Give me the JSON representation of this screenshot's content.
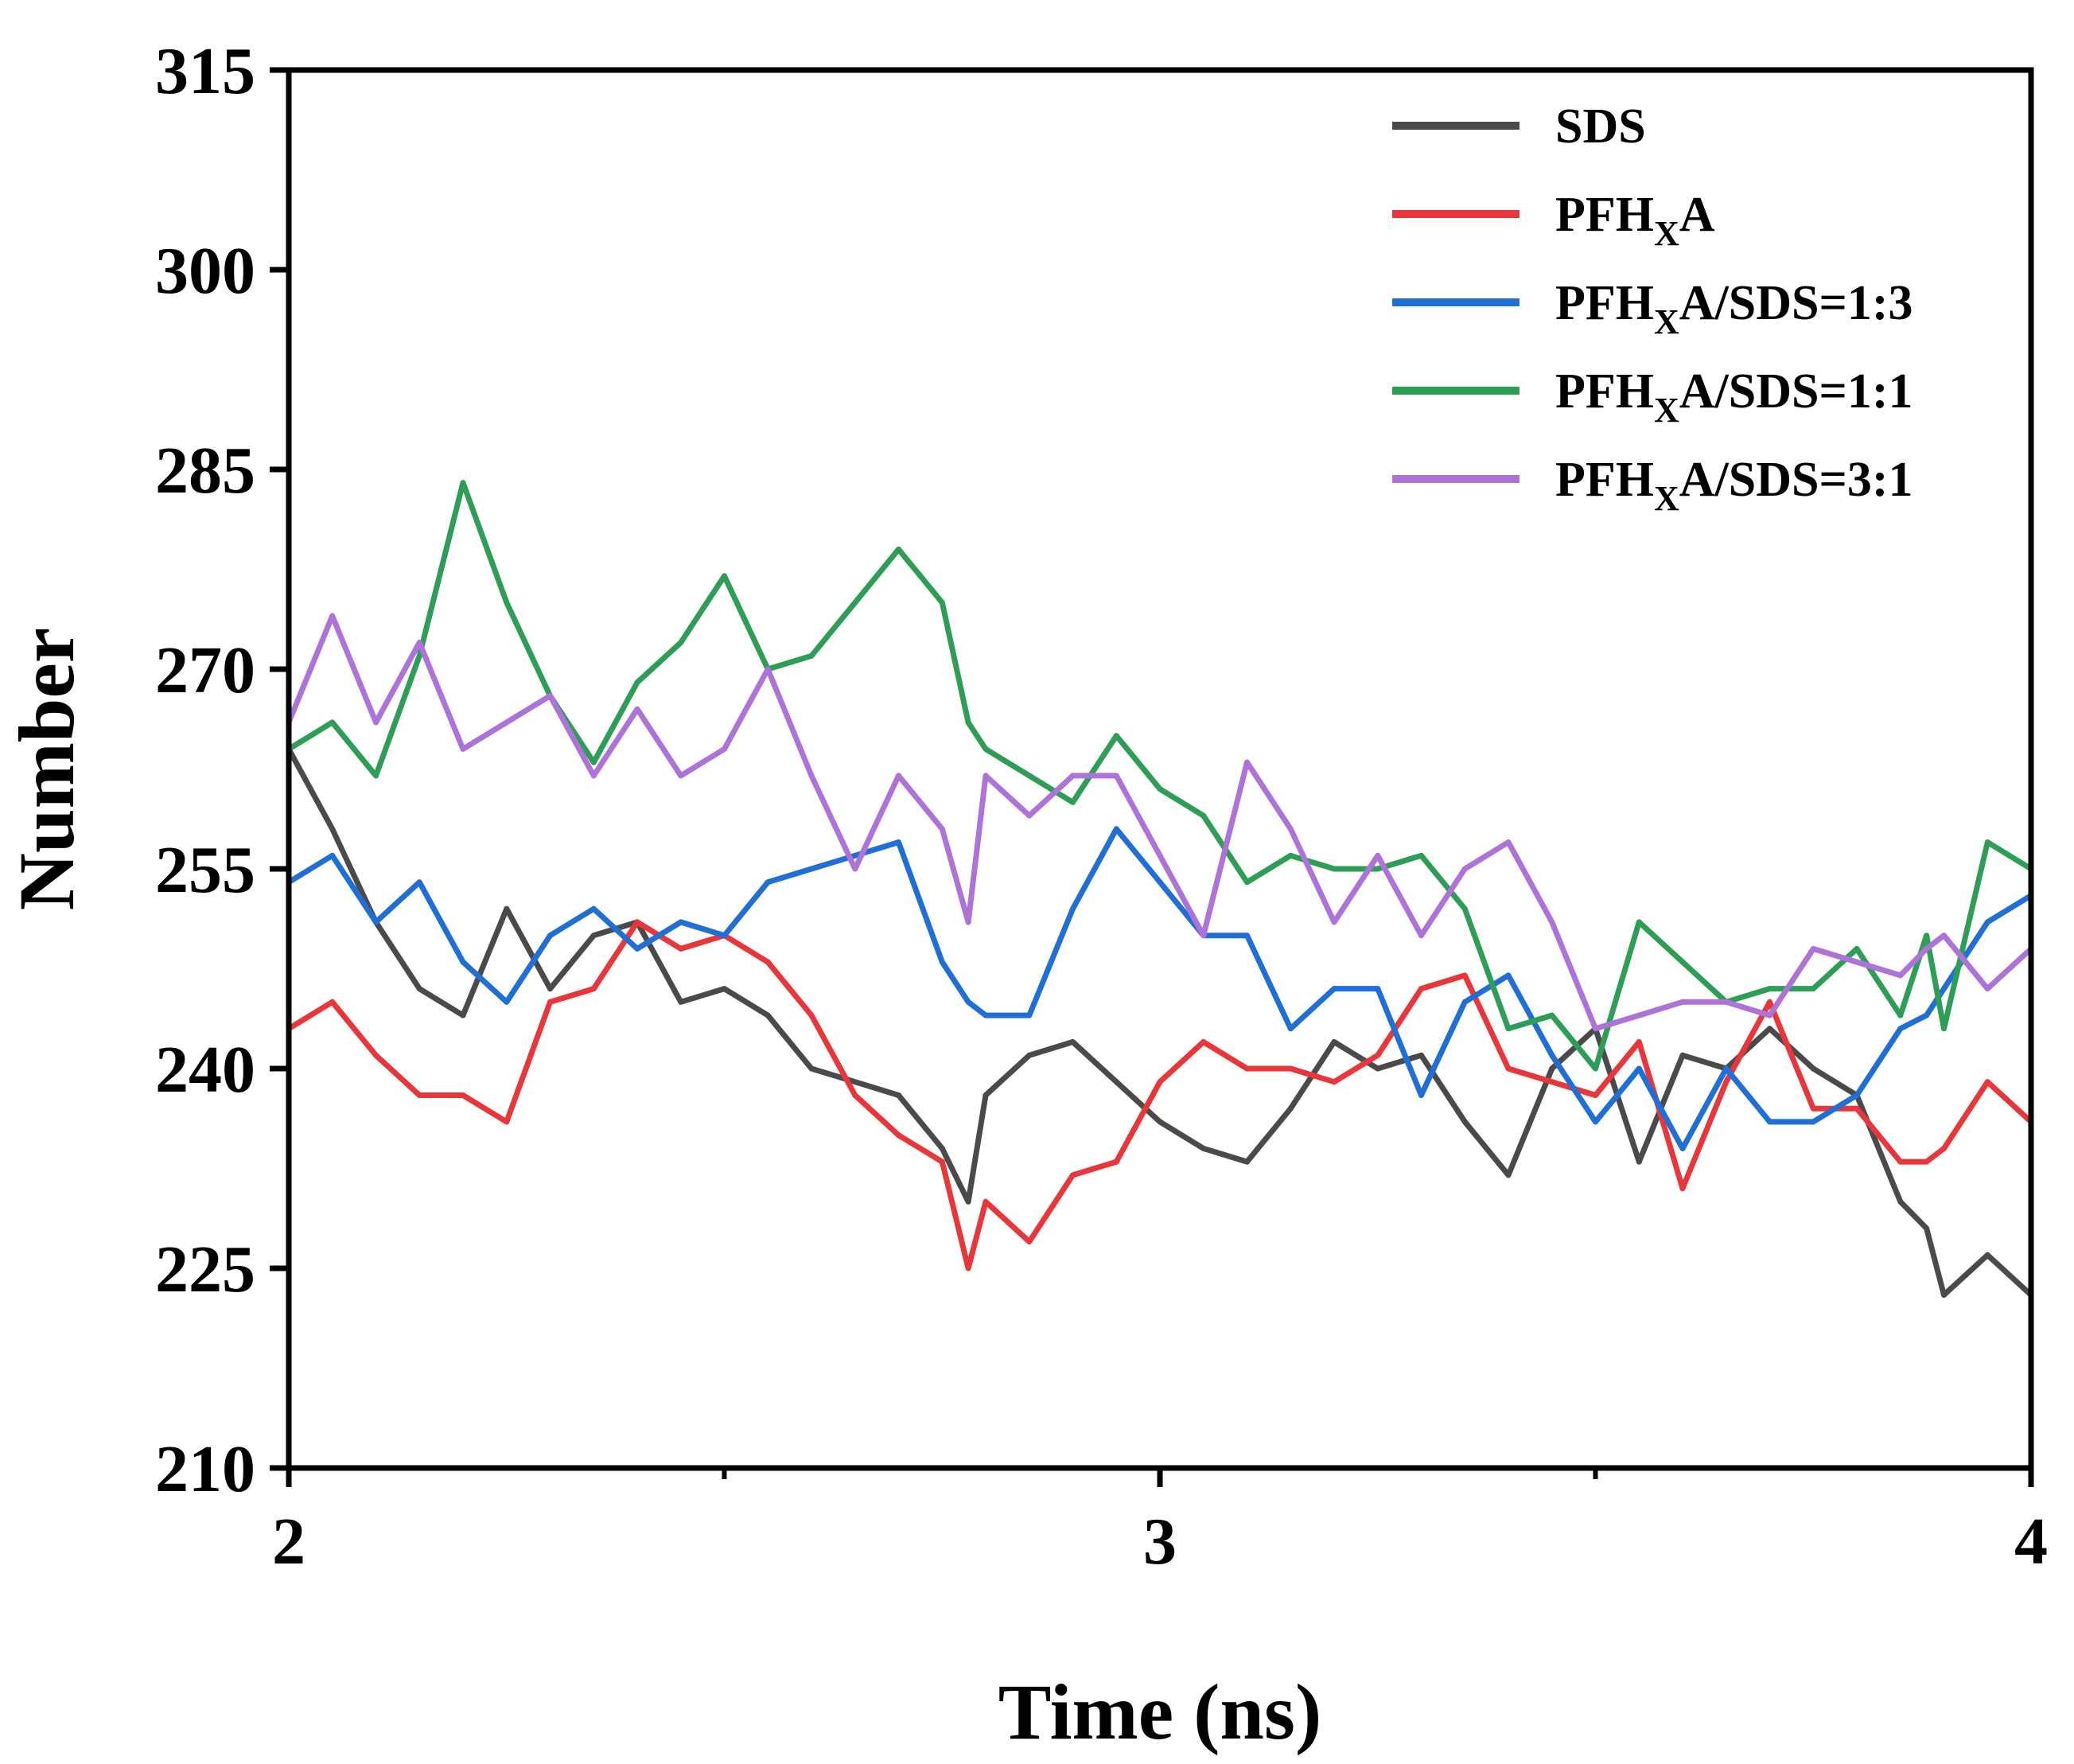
{
  "chart_data": {
    "type": "line",
    "xlabel": "Time (ns)",
    "ylabel": "Number",
    "xlim": [
      2,
      4
    ],
    "ylim": [
      210,
      315
    ],
    "x_ticks": [
      "2",
      "3",
      "4"
    ],
    "y_ticks": [
      "210",
      "225",
      "240",
      "255",
      "270",
      "285",
      "300",
      "315"
    ],
    "legend_position": "top-right",
    "series": [
      {
        "name": "SDS",
        "legend": {
          "main": "SDS",
          "sub": "",
          "rest": ""
        },
        "color": "#4a4a4a",
        "x": [
          2.0,
          2.05,
          2.1,
          2.15,
          2.2,
          2.25,
          2.3,
          2.35,
          2.4,
          2.45,
          2.5,
          2.55,
          2.6,
          2.65,
          2.7,
          2.75,
          2.78,
          2.8,
          2.85,
          2.9,
          2.95,
          3.0,
          3.05,
          3.1,
          3.15,
          3.2,
          3.25,
          3.3,
          3.35,
          3.4,
          3.45,
          3.5,
          3.55,
          3.6,
          3.65,
          3.7,
          3.75,
          3.8,
          3.85,
          3.88,
          3.9,
          3.95,
          4.0
        ],
        "y": [
          264,
          258,
          251,
          246,
          244,
          252,
          246,
          250,
          251,
          245,
          246,
          244,
          240,
          239,
          238,
          234,
          230,
          238,
          241,
          242,
          239,
          236,
          234,
          233,
          237,
          242,
          240,
          241,
          236,
          232,
          240,
          243,
          233,
          241,
          240,
          243,
          240,
          238,
          230,
          228,
          223,
          226,
          223
        ]
      },
      {
        "name": "PFHxA",
        "legend": {
          "main": "PFH",
          "sub": "X",
          "rest": "A"
        },
        "color": "#e8363b",
        "x": [
          2.0,
          2.05,
          2.1,
          2.15,
          2.2,
          2.25,
          2.3,
          2.35,
          2.4,
          2.45,
          2.5,
          2.55,
          2.6,
          2.65,
          2.7,
          2.75,
          2.78,
          2.8,
          2.85,
          2.9,
          2.95,
          3.0,
          3.05,
          3.1,
          3.15,
          3.2,
          3.25,
          3.3,
          3.35,
          3.4,
          3.45,
          3.5,
          3.55,
          3.6,
          3.65,
          3.7,
          3.75,
          3.8,
          3.85,
          3.88,
          3.9,
          3.95,
          4.0
        ],
        "y": [
          243,
          245,
          241,
          238,
          238,
          236,
          245,
          246,
          251,
          249,
          250,
          248,
          244,
          238,
          235,
          233,
          225,
          230,
          227,
          232,
          233,
          239,
          242,
          240,
          240,
          239,
          241,
          246,
          247,
          240,
          239,
          238,
          242,
          231,
          239,
          245,
          237,
          237,
          233,
          233,
          234,
          239,
          236
        ]
      },
      {
        "name": "PFHxA/SDS=1:3",
        "legend": {
          "main": "PFH",
          "sub": "X",
          "rest": "A/SDS=1:3"
        },
        "color": "#1f6fd6",
        "x": [
          2.0,
          2.05,
          2.1,
          2.15,
          2.2,
          2.25,
          2.3,
          2.35,
          2.4,
          2.45,
          2.5,
          2.55,
          2.6,
          2.65,
          2.7,
          2.75,
          2.78,
          2.8,
          2.85,
          2.9,
          2.95,
          3.0,
          3.05,
          3.1,
          3.15,
          3.2,
          3.25,
          3.3,
          3.35,
          3.4,
          3.45,
          3.5,
          3.55,
          3.6,
          3.65,
          3.7,
          3.75,
          3.8,
          3.85,
          3.88,
          3.9,
          3.95,
          4.0
        ],
        "y": [
          254,
          256,
          251,
          254,
          248,
          245,
          250,
          252,
          249,
          251,
          250,
          254,
          255,
          256,
          257,
          248,
          245,
          244,
          244,
          252,
          258,
          254,
          250,
          250,
          243,
          246,
          246,
          238,
          245,
          247,
          241,
          236,
          240,
          234,
          240,
          236,
          236,
          238,
          243,
          244,
          246,
          251,
          253
        ]
      },
      {
        "name": "PFHxA/SDS=1:1",
        "legend": {
          "main": "PFH",
          "sub": "X",
          "rest": "A/SDS=1:1"
        },
        "color": "#2e9e57",
        "x": [
          2.0,
          2.05,
          2.1,
          2.15,
          2.2,
          2.25,
          2.3,
          2.35,
          2.4,
          2.45,
          2.5,
          2.55,
          2.6,
          2.65,
          2.7,
          2.75,
          2.78,
          2.8,
          2.85,
          2.9,
          2.95,
          3.0,
          3.05,
          3.1,
          3.15,
          3.2,
          3.25,
          3.3,
          3.35,
          3.4,
          3.45,
          3.5,
          3.55,
          3.6,
          3.65,
          3.7,
          3.75,
          3.8,
          3.85,
          3.88,
          3.9,
          3.95,
          4.0
        ],
        "y": [
          264,
          266,
          262,
          271,
          284,
          275,
          268,
          263,
          269,
          272,
          277,
          270,
          271,
          275,
          279,
          275,
          266,
          264,
          262,
          260,
          265,
          261,
          259,
          254,
          256,
          255,
          255,
          256,
          252,
          243,
          244,
          240,
          251,
          248,
          245,
          246,
          246,
          249,
          244,
          250,
          243,
          257,
          255
        ]
      },
      {
        "name": "PFHxA/SDS=3:1",
        "legend": {
          "main": "PFH",
          "sub": "X",
          "rest": "A/SDS=3:1"
        },
        "color": "#ad73d9",
        "x": [
          2.0,
          2.05,
          2.1,
          2.15,
          2.2,
          2.25,
          2.3,
          2.35,
          2.4,
          2.45,
          2.5,
          2.55,
          2.6,
          2.65,
          2.7,
          2.75,
          2.78,
          2.8,
          2.85,
          2.9,
          2.95,
          3.0,
          3.05,
          3.1,
          3.15,
          3.2,
          3.25,
          3.3,
          3.35,
          3.4,
          3.45,
          3.5,
          3.55,
          3.6,
          3.65,
          3.7,
          3.75,
          3.8,
          3.85,
          3.88,
          3.9,
          3.95,
          4.0
        ],
        "y": [
          266,
          274,
          266,
          272,
          264,
          266,
          268,
          262,
          267,
          262,
          264,
          270,
          262,
          255,
          262,
          258,
          251,
          262,
          259,
          262,
          262,
          256,
          250,
          263,
          258,
          251,
          256,
          250,
          255,
          257,
          251,
          243,
          244,
          245,
          245,
          244,
          249,
          248,
          247,
          249,
          250,
          246,
          249
        ]
      }
    ]
  }
}
